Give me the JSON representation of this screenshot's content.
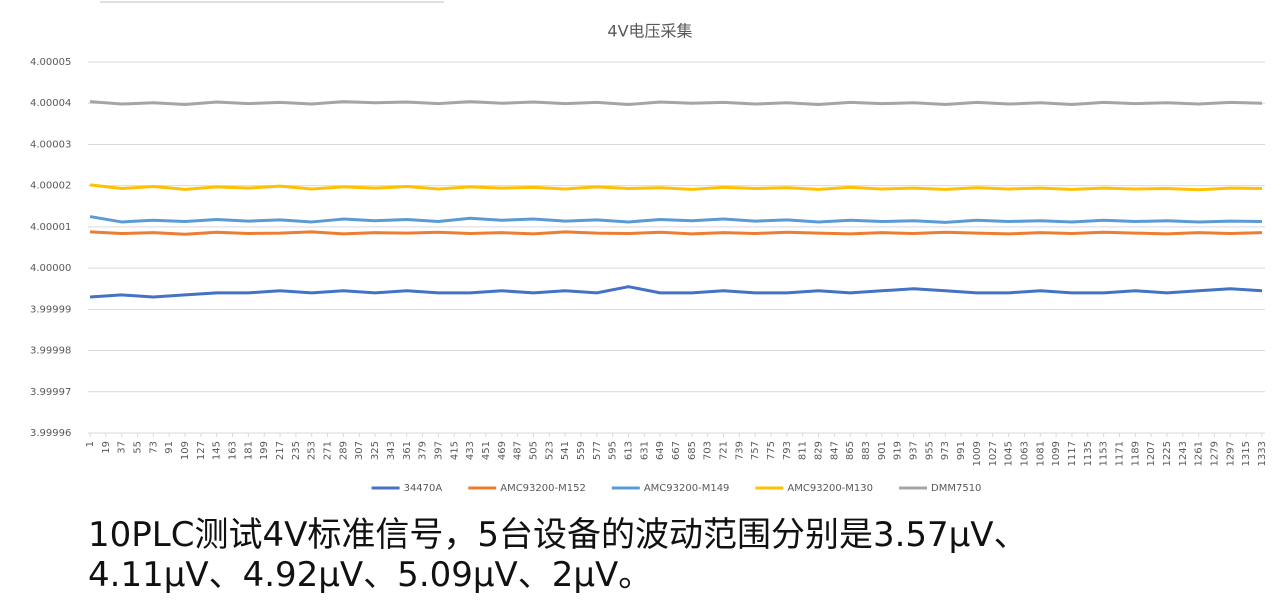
{
  "chart_data": {
    "type": "line",
    "title": "4V电压采集",
    "x": [
      1,
      37,
      73,
      109,
      145,
      181,
      217,
      253,
      289,
      325,
      361,
      397,
      433,
      469,
      505,
      541,
      577,
      613,
      649,
      685,
      721,
      757,
      793,
      829,
      865,
      901,
      937,
      973,
      1009,
      1045,
      1081,
      1117,
      1153,
      1189,
      1225,
      1261,
      1297,
      1333
    ],
    "xlim": [
      1,
      1333
    ],
    "xticks": [
      1,
      19,
      37,
      55,
      73,
      91,
      109,
      127,
      145,
      163,
      181,
      199,
      217,
      235,
      253,
      271,
      289,
      307,
      325,
      343,
      361,
      379,
      397,
      415,
      433,
      451,
      469,
      487,
      505,
      523,
      541,
      559,
      577,
      595,
      613,
      631,
      649,
      667,
      685,
      703,
      721,
      739,
      757,
      775,
      793,
      811,
      829,
      847,
      865,
      883,
      901,
      919,
      937,
      955,
      973,
      991,
      1009,
      1027,
      1045,
      1063,
      1081,
      1099,
      1117,
      1135,
      1153,
      1171,
      1189,
      1207,
      1225,
      1243,
      1261,
      1279,
      1297,
      1315,
      1333
    ],
    "ylim": [
      3.99996,
      4.00005
    ],
    "yticks": [
      3.99996,
      3.99997,
      3.99998,
      3.99999,
      {
        "value": 4,
        "label": "4.00000"
      },
      4.00001,
      4.00002,
      4.00003,
      4.00004,
      4.00005
    ],
    "grid": true,
    "legend": "bottom",
    "series": [
      {
        "name": "34470A",
        "color": "#4472c4",
        "values": [
          3.999993,
          3.9999935,
          3.999993,
          3.9999935,
          3.999994,
          3.999994,
          3.9999945,
          3.999994,
          3.9999945,
          3.999994,
          3.9999945,
          3.999994,
          3.999994,
          3.9999945,
          3.999994,
          3.9999945,
          3.999994,
          3.9999955,
          3.999994,
          3.999994,
          3.9999945,
          3.999994,
          3.999994,
          3.9999945,
          3.999994,
          3.9999945,
          3.999995,
          3.9999945,
          3.999994,
          3.999994,
          3.9999945,
          3.999994,
          3.999994,
          3.9999945,
          3.999994,
          3.9999945,
          3.999995,
          3.9999945
        ]
      },
      {
        "name": "AMC93200-M152",
        "color": "#ed7d31",
        "values": [
          4.0000088,
          4.0000084,
          4.0000086,
          4.0000082,
          4.0000087,
          4.0000084,
          4.0000085,
          4.0000088,
          4.0000083,
          4.0000086,
          4.0000085,
          4.0000087,
          4.0000084,
          4.0000086,
          4.0000083,
          4.0000088,
          4.0000085,
          4.0000084,
          4.0000087,
          4.0000083,
          4.0000086,
          4.0000084,
          4.0000087,
          4.0000085,
          4.0000083,
          4.0000086,
          4.0000084,
          4.0000087,
          4.0000085,
          4.0000083,
          4.0000086,
          4.0000084,
          4.0000087,
          4.0000085,
          4.0000083,
          4.0000086,
          4.0000084,
          4.0000086
        ]
      },
      {
        "name": "AMC93200-M149",
        "color": "#5b9bd5",
        "values": [
          4.0000125,
          4.0000112,
          4.0000116,
          4.0000113,
          4.0000118,
          4.0000114,
          4.0000117,
          4.0000112,
          4.0000119,
          4.0000115,
          4.0000118,
          4.0000113,
          4.0000121,
          4.0000116,
          4.0000119,
          4.0000114,
          4.0000117,
          4.0000112,
          4.0000118,
          4.0000115,
          4.0000119,
          4.0000114,
          4.0000117,
          4.0000112,
          4.0000116,
          4.0000113,
          4.0000115,
          4.0000111,
          4.0000116,
          4.0000113,
          4.0000115,
          4.0000112,
          4.0000116,
          4.0000113,
          4.0000115,
          4.0000112,
          4.0000114,
          4.0000113
        ]
      },
      {
        "name": "AMC93200-M130",
        "color": "#ffc000",
        "values": [
          4.0000202,
          4.0000193,
          4.0000198,
          4.0000191,
          4.0000197,
          4.0000194,
          4.0000199,
          4.0000192,
          4.0000197,
          4.0000194,
          4.0000198,
          4.0000192,
          4.0000197,
          4.0000194,
          4.0000196,
          4.0000192,
          4.0000197,
          4.0000193,
          4.0000195,
          4.0000191,
          4.0000196,
          4.0000193,
          4.0000195,
          4.0000191,
          4.0000196,
          4.0000192,
          4.0000194,
          4.0000191,
          4.0000195,
          4.0000192,
          4.0000194,
          4.0000191,
          4.0000194,
          4.0000192,
          4.0000193,
          4.000019,
          4.0000194,
          4.0000193
        ]
      },
      {
        "name": "DMM7510",
        "color": "#a5a5a5",
        "values": [
          4.0000404,
          4.0000398,
          4.0000401,
          4.0000397,
          4.0000403,
          4.0000399,
          4.0000402,
          4.0000398,
          4.0000404,
          4.0000401,
          4.0000403,
          4.0000399,
          4.0000404,
          4.00004,
          4.0000403,
          4.0000399,
          4.0000402,
          4.0000397,
          4.0000403,
          4.00004,
          4.0000402,
          4.0000398,
          4.0000401,
          4.0000397,
          4.0000402,
          4.0000399,
          4.0000401,
          4.0000397,
          4.0000402,
          4.0000398,
          4.0000401,
          4.0000397,
          4.0000402,
          4.0000399,
          4.0000401,
          4.0000398,
          4.0000402,
          4.00004
        ]
      }
    ]
  },
  "caption": [
    "10PLC测试4V标准信号，5台设备的波动范围分别是3.57μV、",
    "4.11μV、4.92μV、5.09μV、2μV。"
  ]
}
